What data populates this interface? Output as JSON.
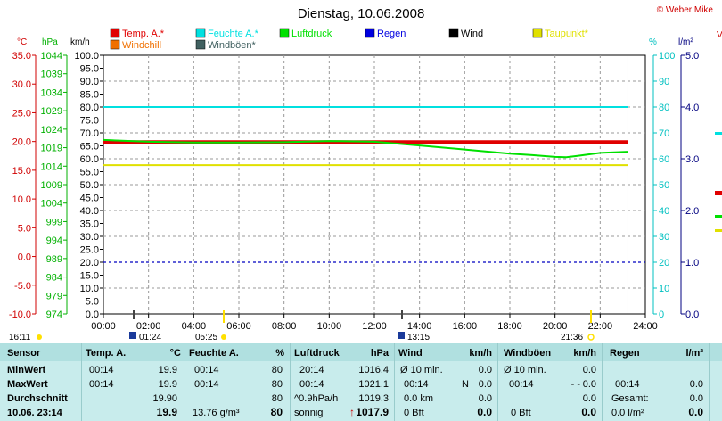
{
  "header": {
    "title": "Dienstag, 10.06.2008",
    "copyright": "© Weber Mike",
    "cut_right_text": "V"
  },
  "legend": [
    {
      "label": "Temp. A.*",
      "color": "#e00000"
    },
    {
      "label": "Feuchte A.*",
      "color": "#00e0e0"
    },
    {
      "label": "Luftdruck",
      "color": "#00e000"
    },
    {
      "label": "Regen",
      "color": "#0000e0"
    },
    {
      "label": "Wind",
      "color": "#000000"
    },
    {
      "label": "Taupunkt*",
      "color": "#e0e000"
    },
    {
      "label": "Windchill",
      "color": "#f07000"
    },
    {
      "label": "Windböen*",
      "color": "#406060"
    }
  ],
  "axes": {
    "temp_unit": "°C",
    "pressure_unit": "hPa",
    "wind_unit": "km/h",
    "hum_unit": "%",
    "rain_unit": "l/m²",
    "temp_ticks": [
      "35.0",
      "30.0",
      "25.0",
      "20.0",
      "15.0",
      "10.0",
      "5.0",
      "0.0",
      "-5.0",
      "-10.0"
    ],
    "pressure_ticks": [
      "1044",
      "1039",
      "1034",
      "1029",
      "1024",
      "1019",
      "1014",
      "1009",
      "1004",
      "999",
      "994",
      "989",
      "984",
      "979",
      "974"
    ],
    "wind_ticks": [
      "100.0",
      "95.0",
      "90.0",
      "85.0",
      "80.0",
      "75.0",
      "70.0",
      "65.0",
      "60.0",
      "55.0",
      "50.0",
      "45.0",
      "40.0",
      "35.0",
      "30.0",
      "25.0",
      "20.0",
      "15.0",
      "10.0",
      "5.0",
      "0.0"
    ],
    "hum_ticks": [
      "100",
      "90",
      "80",
      "70",
      "60",
      "50",
      "40",
      "30",
      "20",
      "10",
      "0"
    ],
    "rain_ticks": [
      "5.0",
      "4.0",
      "3.0",
      "2.0",
      "1.0",
      "0.0"
    ],
    "time_ticks": [
      "00:00",
      "02:00",
      "04:00",
      "06:00",
      "08:00",
      "10:00",
      "12:00",
      "14:00",
      "16:00",
      "18:00",
      "20:00",
      "22:00",
      "24:00"
    ]
  },
  "chart_data": {
    "type": "line",
    "title": "Dienstag, 10.06.2008",
    "x_unit": "h",
    "x_range": [
      0,
      24
    ],
    "wind_ylim": [
      0,
      100
    ],
    "series": [
      {
        "name": "Temp. A.*",
        "unit": "°C",
        "points": [
          [
            0,
            19.9
          ],
          [
            23.23,
            19.9
          ]
        ]
      },
      {
        "name": "Feuchte A.*",
        "unit": "%",
        "points": [
          [
            0,
            80
          ],
          [
            23.23,
            80
          ]
        ]
      },
      {
        "name": "Luftdruck",
        "unit": "hPa",
        "points": [
          [
            0,
            1021.1
          ],
          [
            2,
            1020.6
          ],
          [
            4,
            1020.4
          ],
          [
            6,
            1020.4
          ],
          [
            8,
            1020.5
          ],
          [
            10,
            1020.8
          ],
          [
            12,
            1020.6
          ],
          [
            13,
            1020.1
          ],
          [
            14,
            1019.6
          ],
          [
            16,
            1018.5
          ],
          [
            18,
            1017.4
          ],
          [
            19,
            1017.0
          ],
          [
            20,
            1016.5
          ],
          [
            20.5,
            1016.4
          ],
          [
            21,
            1016.8
          ],
          [
            22,
            1017.6
          ],
          [
            23.23,
            1017.9
          ]
        ]
      },
      {
        "name": "Taupunkt*",
        "unit": "°C",
        "points": [
          [
            0,
            15.9
          ],
          [
            23.23,
            15.9
          ]
        ]
      },
      {
        "name": "Regen",
        "unit": "l/m²",
        "points": [
          [
            0,
            0
          ],
          [
            23.23,
            0
          ]
        ]
      },
      {
        "name": "Wind",
        "unit": "km/h",
        "points": [
          [
            0,
            0
          ],
          [
            23.23,
            0
          ]
        ]
      }
    ],
    "dashed_reference": {
      "unit": "l/m²",
      "value": 1.0
    }
  },
  "sun_events": {
    "sunrise_time_top": "05:25",
    "sunset_time_top": "21:36",
    "sunrise_marker": "01:24",
    "moon_marker": "13:15",
    "left_time": "16:11"
  },
  "table": {
    "rows_labels": {
      "sensor": "Sensor",
      "min": "MinWert",
      "max": "MaxWert",
      "avg": "Durchschnitt",
      "now": "10.06. 23:14"
    },
    "temp": {
      "header": "Temp. A.",
      "unit": "°C",
      "min_time": "00:14",
      "min": "19.9",
      "max_time": "00:14",
      "max": "19.9",
      "avg": "19.90",
      "now": "19.9"
    },
    "hum": {
      "header": "Feuchte A.",
      "unit": "%",
      "min_time": "00:14",
      "min": "80",
      "max_time": "00:14",
      "max": "80",
      "avg": "80",
      "abs": "13.76 g/m³",
      "now": "80"
    },
    "press": {
      "header": "Luftdruck",
      "unit": "hPa",
      "min_time": "20:14",
      "min": "1016.4",
      "max_time": "00:14",
      "max": "1021.1",
      "trend": "^0.9hPa/h",
      "avg": "1019.3",
      "forecast": "sonnig",
      "now": "1017.9",
      "arrow": "↑"
    },
    "wind": {
      "header": "Wind",
      "unit": "km/h",
      "min_label": "Ø 10 min.",
      "min": "0.0",
      "max_time": "00:14",
      "max_dir": "N",
      "max": "0.0",
      "dist": "0.0 km",
      "avg": "0.0",
      "bft": "0 Bft",
      "now": "0.0"
    },
    "gust": {
      "header": "Windböen",
      "unit": "km/h",
      "min_label": "Ø 10 min.",
      "min": "0.0",
      "max_time": "00:14",
      "max_dir": "- -",
      "max": "0.0",
      "avg": "0.0",
      "bft": "0 Bft",
      "now": "0.0"
    },
    "rain": {
      "header": "Regen",
      "unit": "l/m²",
      "max_time": "00:14",
      "max": "0.0",
      "total_label": "Gesamt:",
      "total": "0.0",
      "now_label": "0.0 l/m²",
      "now": "0.0"
    }
  }
}
